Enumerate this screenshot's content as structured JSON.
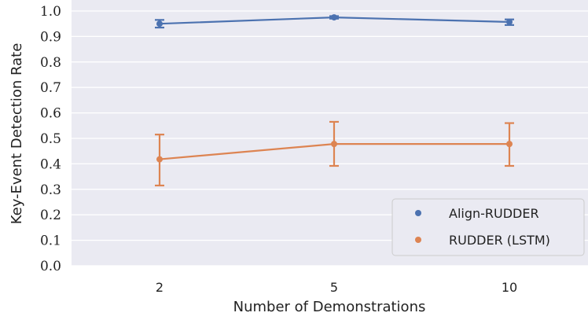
{
  "chart_data": {
    "type": "line",
    "categories": [
      "2",
      "5",
      "10"
    ],
    "xlabel": "Number of Demonstrations",
    "ylabel": "Key-Event Detection Rate",
    "ylim": [
      0.0,
      1.0
    ],
    "yticks": [
      "0.0",
      "0.1",
      "0.2",
      "0.3",
      "0.4",
      "0.5",
      "0.6",
      "0.7",
      "0.8",
      "0.9",
      "1.0"
    ],
    "grid": true,
    "legend_position": "bottom-right",
    "series": [
      {
        "name": "Align-RUDDER",
        "color": "#4c72b0",
        "values": [
          0.95,
          0.975,
          0.957
        ],
        "lower": [
          0.935,
          0.97,
          0.945
        ],
        "upper": [
          0.965,
          0.98,
          0.967
        ]
      },
      {
        "name": "RUDDER (LSTM)",
        "color": "#dd8452",
        "values": [
          0.418,
          0.478,
          0.478
        ],
        "lower": [
          0.315,
          0.392,
          0.392
        ],
        "upper": [
          0.515,
          0.565,
          0.56
        ]
      }
    ]
  }
}
